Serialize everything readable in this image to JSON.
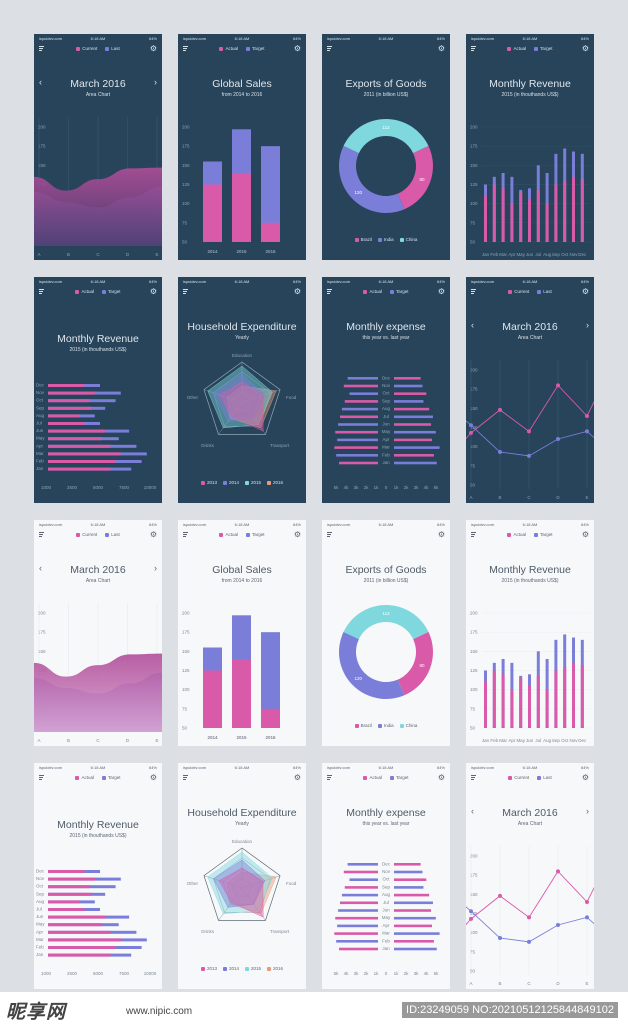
{
  "status": {
    "carrier": "ispuidev.com",
    "time": "6:18 AM",
    "battery": "64%"
  },
  "colors": {
    "pink": "#d85aa8",
    "purple": "#7a7ed8",
    "teal": "#7fd8de",
    "orange": "#e89a7a",
    "darkbg": "#27445a",
    "lightbg": "#f7f8fa"
  },
  "icons": {
    "menu": "menu-icon",
    "settings": "gear-icon",
    "prev": "chevron-left-icon",
    "next": "chevron-right-icon"
  },
  "legends": {
    "current_last": [
      "Current",
      "Last"
    ],
    "actual_target": [
      "Actual",
      "Target"
    ],
    "exports": [
      "Brazil",
      "India",
      "China"
    ],
    "years": [
      "2013",
      "2014",
      "2015",
      "2016"
    ]
  },
  "screens": {
    "area": {
      "title": "March 2016",
      "subtitle": "Area Chart",
      "prev": "‹",
      "next": "›"
    },
    "sales": {
      "title": "Global Sales",
      "subtitle": "from 2014 to 2016"
    },
    "exports": {
      "title": "Exports of Goods",
      "subtitle": "2011 (in billion US$)"
    },
    "revenue": {
      "title": "Monthly Revenue",
      "subtitle": "2015 (in thouthands US$)"
    },
    "household": {
      "title": "Household Expenditure",
      "subtitle": "Yearly"
    },
    "expense": {
      "title": "Monthly expense",
      "subtitle": "this year vs. last year"
    },
    "line": {
      "title": "March 2016",
      "subtitle": "Area Chart",
      "prev": "‹",
      "next": "›"
    }
  },
  "chart_data": [
    {
      "type": "area",
      "title": "March 2016",
      "subtitle": "Area Chart",
      "categories": [
        "A",
        "B",
        "C",
        "D",
        "E"
      ],
      "yticks": [
        200,
        175,
        150,
        125,
        100,
        75,
        50
      ],
      "ylim": [
        50,
        200
      ],
      "series": [
        {
          "name": "Current",
          "values": [
            135,
            117,
            132,
            146,
            147
          ]
        },
        {
          "name": "Last",
          "values": [
            115,
            102,
            95,
            108,
            122
          ]
        }
      ]
    },
    {
      "type": "bar",
      "title": "Global Sales",
      "subtitle": "from 2014 to 2016",
      "categories": [
        "2014",
        "2015",
        "2016"
      ],
      "yticks": [
        200,
        175,
        150,
        125,
        100,
        75,
        50
      ],
      "ylim": [
        50,
        200
      ],
      "series": [
        {
          "name": "Actual",
          "values": [
            125,
            140,
            75
          ]
        },
        {
          "name": "Target",
          "values": [
            155,
            197,
            175
          ]
        }
      ]
    },
    {
      "type": "pie",
      "title": "Exports of Goods",
      "subtitle": "2011 (in billion US$)",
      "categories": [
        "Brazil",
        "India",
        "China"
      ],
      "values": [
        80,
        120,
        112
      ]
    },
    {
      "type": "bar",
      "title": "Monthly Revenue",
      "subtitle": "2015 (in thouthands US$)",
      "categories": [
        "Jan",
        "Feb",
        "Mar",
        "Apr",
        "May",
        "Jun",
        "Jul",
        "Aug",
        "Sep",
        "Oct",
        "Nov",
        "Dec"
      ],
      "yticks": [
        200,
        175,
        150,
        125,
        100,
        75,
        50
      ],
      "ylim": [
        50,
        200
      ],
      "series": [
        {
          "name": "Actual",
          "values": [
            110,
            125,
            120,
            100,
            115,
            105,
            118,
            100,
            125,
            130,
            135,
            132
          ]
        },
        {
          "name": "Target",
          "values": [
            125,
            135,
            140,
            135,
            118,
            120,
            150,
            140,
            165,
            172,
            168,
            165
          ]
        }
      ]
    },
    {
      "type": "bar",
      "title": "Monthly Revenue",
      "subtitle": "2015 (in thouthands US$)",
      "orientation": "horizontal",
      "categories": [
        "Dec",
        "Nov",
        "Oct",
        "Sep",
        "Aug",
        "Jul",
        "Jun",
        "May",
        "Apr",
        "Mar",
        "Feb",
        "Jan"
      ],
      "xticks": [
        1000,
        2500,
        5000,
        7500,
        10000
      ],
      "xlim": [
        0,
        10000
      ],
      "series": [
        {
          "name": "Actual",
          "values": [
            3500,
            4500,
            4000,
            4200,
            3000,
            3500,
            5500,
            5200,
            6000,
            7000,
            6500,
            6000
          ]
        },
        {
          "name": "Target",
          "values": [
            5000,
            7000,
            6500,
            5500,
            4500,
            5000,
            7800,
            6800,
            8500,
            9500,
            9000,
            8000
          ]
        }
      ]
    },
    {
      "type": "radar",
      "title": "Household Expenditure",
      "subtitle": "Yearly",
      "categories": [
        "Education",
        "Food",
        "Transport",
        "Drinks",
        "Other"
      ],
      "series": [
        {
          "name": "2013",
          "values": [
            0.5,
            0.55,
            0.9,
            0.45,
            0.6
          ]
        },
        {
          "name": "2014",
          "values": [
            0.7,
            0.6,
            0.5,
            0.6,
            0.75
          ]
        },
        {
          "name": "2015",
          "values": [
            0.9,
            0.8,
            0.7,
            0.8,
            0.9
          ]
        },
        {
          "name": "2016",
          "values": [
            0.4,
            0.9,
            0.8,
            0.5,
            0.4
          ]
        }
      ]
    },
    {
      "type": "bar",
      "title": "Monthly expense",
      "subtitle": "this year vs. last year",
      "orientation": "butterfly",
      "categories": [
        "Dec",
        "Nov",
        "Oct",
        "Sep",
        "Aug",
        "Jul",
        "Jun",
        "May",
        "Apr",
        "Mar",
        "Feb",
        "Jan"
      ],
      "ticks": [
        "5k",
        "4k",
        "3k",
        "2k",
        "1k",
        "0",
        "1k",
        "2k",
        "3k",
        "4k",
        "5k"
      ],
      "series": [
        {
          "name": "Actual",
          "values": [
            3.2,
            3.6,
            3.0,
            3.5,
            3.8,
            4.0,
            4.2,
            4.5,
            4.3,
            4.6,
            4.4,
            4.1
          ]
        },
        {
          "name": "Target",
          "values": [
            2.8,
            3.0,
            3.4,
            3.1,
            3.7,
            4.1,
            3.9,
            4.4,
            4.0,
            4.8,
            4.2,
            4.5
          ]
        }
      ]
    },
    {
      "type": "line",
      "title": "March 2016",
      "subtitle": "Area Chart",
      "categories": [
        "A",
        "B",
        "C",
        "D",
        "E"
      ],
      "yticks": [
        200,
        175,
        150,
        125,
        100,
        75,
        50
      ],
      "ylim": [
        50,
        200
      ],
      "series": [
        {
          "name": "Current",
          "values": [
            118,
            148,
            120,
            180,
            140
          ]
        },
        {
          "name": "Last",
          "values": [
            128,
            93,
            88,
            110,
            120
          ]
        }
      ]
    }
  ],
  "watermark": {
    "logo": "昵享网",
    "url": "www.nipic.com",
    "id": "ID:23249059 NO:20210512125844849102"
  }
}
